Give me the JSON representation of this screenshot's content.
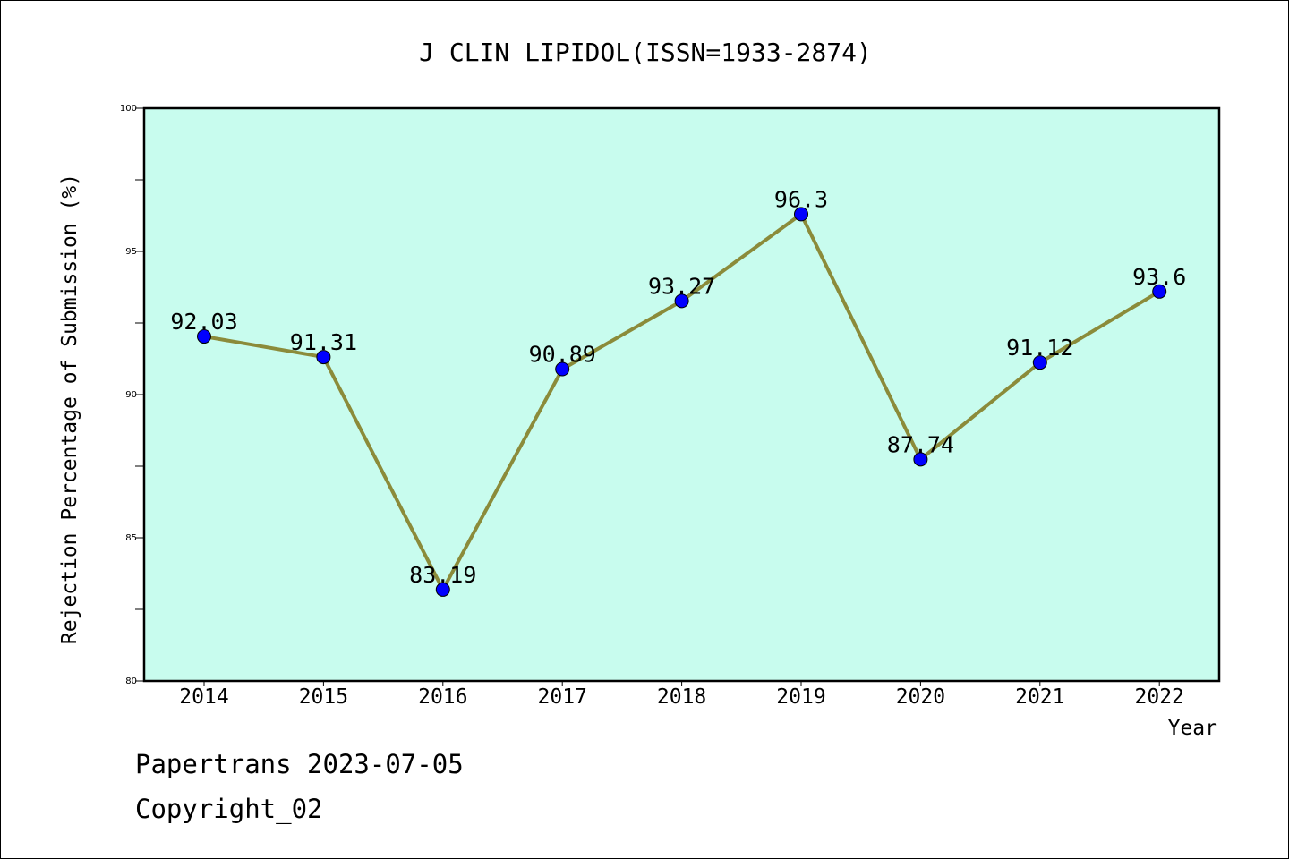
{
  "chart_data": {
    "type": "line",
    "title": "J CLIN LIPIDOL(ISSN=1933-2874)",
    "xlabel": "Year",
    "ylabel": "Rejection Percentage of Submission (%)",
    "categories": [
      "2014",
      "2015",
      "2016",
      "2017",
      "2018",
      "2019",
      "2020",
      "2021",
      "2022"
    ],
    "series": [
      {
        "values": [
          92.03,
          91.31,
          83.19,
          90.89,
          93.27,
          96.3,
          87.74,
          91.12,
          93.6
        ],
        "labels": [
          "92.03",
          "91.31",
          "83.19",
          "90.89",
          "93.27",
          "96.3",
          "87.74",
          "91.12",
          "93.6"
        ],
        "line_color": "#8b8b3a",
        "marker_color": "#0000ff"
      }
    ],
    "ylim": [
      80,
      100
    ],
    "yticks": [
      "80",
      "85",
      "90",
      "95",
      "100"
    ],
    "plot_background": "#c8fcee",
    "grid": false,
    "legend": "none"
  },
  "footer": {
    "line1": "Papertrans 2023-07-05",
    "line2": "Copyright_02"
  }
}
